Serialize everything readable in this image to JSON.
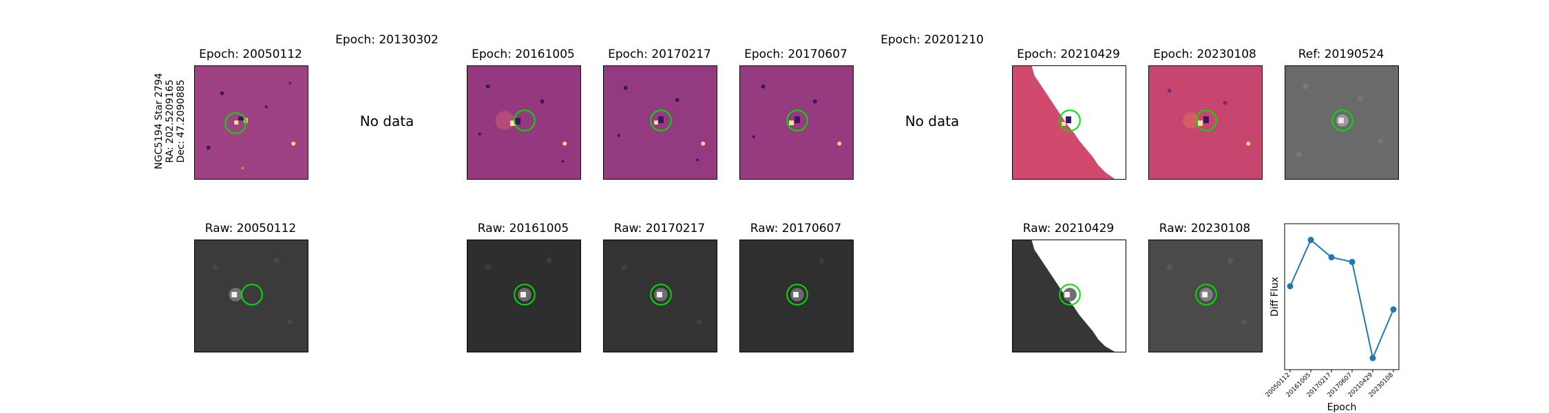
{
  "star_label": {
    "line1": "NGC5194 Star 2794",
    "line2": "RA: 202.5209165",
    "line3": "Dec: 47.2090885"
  },
  "no_data_text": "No data",
  "diff_panels": [
    {
      "title": "Epoch: 20050112",
      "has_data": true,
      "colormap": "magma"
    },
    {
      "title": "Epoch: 20130302",
      "has_data": false
    },
    {
      "title": "Epoch: 20161005",
      "has_data": true,
      "colormap": "magma"
    },
    {
      "title": "Epoch: 20170217",
      "has_data": true,
      "colormap": "magma"
    },
    {
      "title": "Epoch: 20170607",
      "has_data": true,
      "colormap": "magma"
    },
    {
      "title": "Epoch: 20201210",
      "has_data": false
    },
    {
      "title": "Epoch: 20210429",
      "has_data": true,
      "colormap": "magma",
      "partial": true
    },
    {
      "title": "Epoch: 20230108",
      "has_data": true,
      "colormap": "magma"
    },
    {
      "title": "Ref: 20190524",
      "has_data": true,
      "colormap": "gray"
    }
  ],
  "raw_panels": [
    {
      "title": "Raw: 20050112"
    },
    {
      "title": "Raw: 20161005"
    },
    {
      "title": "Raw: 20170217"
    },
    {
      "title": "Raw: 20170607"
    },
    {
      "title": "Raw: 20210429",
      "partial": true
    },
    {
      "title": "Raw: 20230108"
    }
  ],
  "colors": {
    "aperture": "#00e000",
    "series": "#1f77b4",
    "magma_bg": "#a33d80",
    "magma_partial_bg": "#d14a6e",
    "raw_bg": "#3a3a3a",
    "ref_bg": "#666666"
  },
  "chart_data": {
    "type": "line",
    "title": "",
    "xlabel": "Epoch",
    "ylabel": "Diff Flux",
    "categories": [
      "20050112",
      "20161005",
      "20170217",
      "20170607",
      "20210429",
      "20230108"
    ],
    "values": [
      0.52,
      0.92,
      0.77,
      0.73,
      -0.1,
      0.32
    ],
    "ylim": [
      -0.2,
      1.06
    ],
    "y_ticks_shown": false,
    "grid": false,
    "marker": "circle"
  }
}
